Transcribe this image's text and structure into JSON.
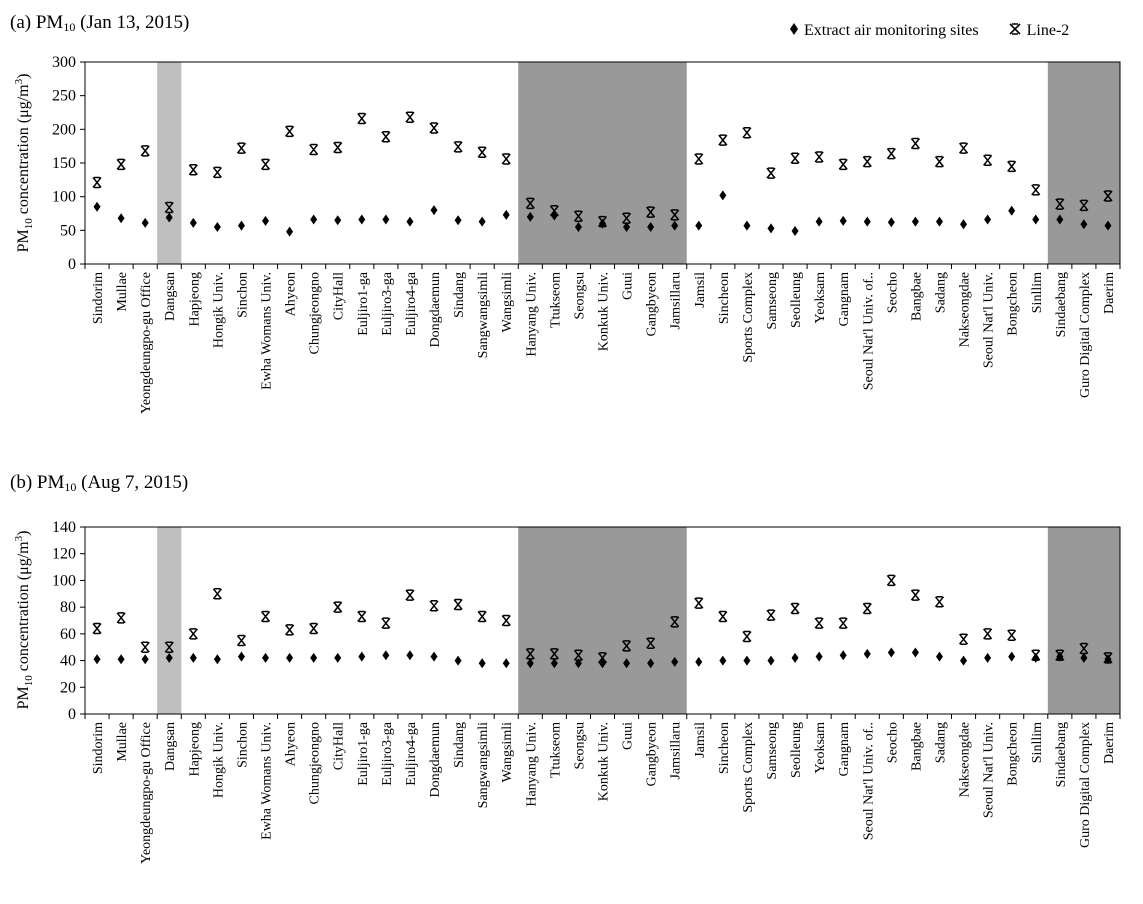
{
  "panel_a": {
    "label_prefix": "(a) PM",
    "label_sub": "10",
    "label_suffix": " (Jan 13, 2015)"
  },
  "panel_b": {
    "label_prefix": "(b) PM",
    "label_sub": "10",
    "label_suffix": " (Aug 7, 2015)"
  },
  "legend": {
    "series_extract": "Extract air monitoring sites",
    "series_line2": "Line-2"
  },
  "ylabel": {
    "prefix": "PM",
    "sub": "10",
    "mid": " concentration (μg/m",
    "sup": "3",
    "end": ")"
  },
  "colors": {
    "shade_light": "#bfbfbf",
    "shade_dark": "#999999",
    "marker": "#000000"
  },
  "chart_data": [
    {
      "type": "scatter",
      "title": "(a) PM10 (Jan 13, 2015)",
      "ylabel": "PM10 concentration (μg/m3)",
      "ylim": [
        0,
        300
      ],
      "yticks": [
        0,
        50,
        100,
        150,
        200,
        250,
        300
      ],
      "grid": false,
      "legend": "top-right",
      "categories": [
        "Sindorim",
        "Mullae",
        "Yeongdeungpo-gu Office",
        "Dangsan",
        "Hapjeong",
        "Hongik Univ.",
        "Sinchon",
        "Ewha Womans Univ.",
        "Ahyeon",
        "Chungjeongno",
        "CityHall",
        "Euljiro1-ga",
        "Euljiro3-ga",
        "Euljiro4-ga",
        "Dongdaemun",
        "Sindang",
        "Sangwangsimli",
        "Wangsimli",
        "Hanyang Univ.",
        "Ttukseom",
        "Seongsu",
        "Konkuk Univ.",
        "Guui",
        "Gangbyeon",
        "Jamsillaru",
        "Jamsil",
        "Sincheon",
        "Sports Complex",
        "Samseong",
        "Seolleung",
        "Yeoksam",
        "Gangnam",
        "Seoul Nat'l Univ. of..",
        "Seocho",
        "Bangbae",
        "Sadang",
        "Nakseongdae",
        "Seoul Nat'l Univ.",
        "Bongcheon",
        "Sinllim",
        "Sindaebang",
        "Guro Digital Complex",
        "Daerim"
      ],
      "shaded_ranges": [
        {
          "from": "Dangsan",
          "to": "Dangsan",
          "shade": "light"
        },
        {
          "from": "Hanyang Univ.",
          "to": "Jamsillaru",
          "shade": "dark"
        },
        {
          "from": "Sindaebang",
          "to": "Daerim",
          "shade": "dark"
        }
      ],
      "series": [
        {
          "name": "Extract air monitoring sites",
          "marker": "diamond",
          "values": [
            85,
            68,
            61,
            69,
            61,
            55,
            57,
            64,
            48,
            66,
            65,
            66,
            66,
            63,
            80,
            65,
            63,
            73,
            70,
            72,
            55,
            60,
            55,
            55,
            57,
            57,
            102,
            57,
            53,
            49,
            63,
            64,
            63,
            62,
            63,
            63,
            59,
            66,
            79,
            66,
            66,
            59,
            57
          ]
        },
        {
          "name": "Line-2",
          "marker": "star",
          "values": [
            121,
            148,
            168,
            84,
            140,
            136,
            172,
            148,
            197,
            170,
            173,
            216,
            189,
            218,
            202,
            174,
            166,
            156,
            90,
            79,
            71,
            63,
            68,
            77,
            73,
            156,
            184,
            195,
            135,
            157,
            159,
            148,
            152,
            164,
            179,
            152,
            172,
            154,
            145,
            110,
            89,
            87,
            101
          ]
        }
      ]
    },
    {
      "type": "scatter",
      "title": "(b) PM10 (Aug 7, 2015)",
      "ylabel": "PM10 concentration (μg/m3)",
      "ylim": [
        0,
        140
      ],
      "yticks": [
        0,
        20,
        40,
        60,
        80,
        100,
        120,
        140
      ],
      "grid": false,
      "categories": [
        "Sindorim",
        "Mullae",
        "Yeongdeungpo-gu Office",
        "Dangsan",
        "Hapjeong",
        "Hongik Univ.",
        "Sinchon",
        "Ewha Womans Univ.",
        "Ahyeon",
        "Chungjeongno",
        "CityHall",
        "Euljiro1-ga",
        "Euljiro3-ga",
        "Euljiro4-ga",
        "Dongdaemun",
        "Sindang",
        "Sangwangsimli",
        "Wangsimli",
        "Hanyang Univ.",
        "Ttukseom",
        "Seongsu",
        "Konkuk Univ.",
        "Guui",
        "Gangbyeon",
        "Jamsillaru",
        "Jamsil",
        "Sincheon",
        "Sports Complex",
        "Samseong",
        "Seolleung",
        "Yeoksam",
        "Gangnam",
        "Seoul Nat'l Univ. of..",
        "Seocho",
        "Bangbae",
        "Sadang",
        "Nakseongdae",
        "Seoul Nat'l Univ.",
        "Bongcheon",
        "Sinllim",
        "Sindaebang",
        "Guro Digital Complex",
        "Daerim"
      ],
      "shaded_ranges": [
        {
          "from": "Dangsan",
          "to": "Dangsan",
          "shade": "light"
        },
        {
          "from": "Hanyang Univ.",
          "to": "Jamsillaru",
          "shade": "dark"
        },
        {
          "from": "Sindaebang",
          "to": "Daerim",
          "shade": "dark"
        }
      ],
      "series": [
        {
          "name": "Extract air monitoring sites",
          "marker": "diamond",
          "values": [
            41,
            41,
            41,
            42,
            42,
            41,
            43,
            42,
            42,
            42,
            42,
            43,
            44,
            44,
            43,
            40,
            38,
            38,
            38,
            38,
            38,
            38,
            38,
            38,
            39,
            39,
            40,
            40,
            40,
            42,
            43,
            44,
            45,
            46,
            46,
            43,
            40,
            42,
            43,
            42,
            43,
            42,
            41
          ]
        },
        {
          "name": "Line-2",
          "marker": "star",
          "values": [
            64,
            72,
            50,
            50,
            60,
            90,
            55,
            73,
            63,
            64,
            80,
            73,
            68,
            89,
            81,
            82,
            73,
            70,
            45,
            45,
            44,
            42,
            51,
            53,
            69,
            83,
            73,
            58,
            74,
            79,
            68,
            68,
            79,
            100,
            89,
            84,
            56,
            60,
            59,
            44,
            44,
            49,
            42
          ]
        }
      ]
    }
  ]
}
